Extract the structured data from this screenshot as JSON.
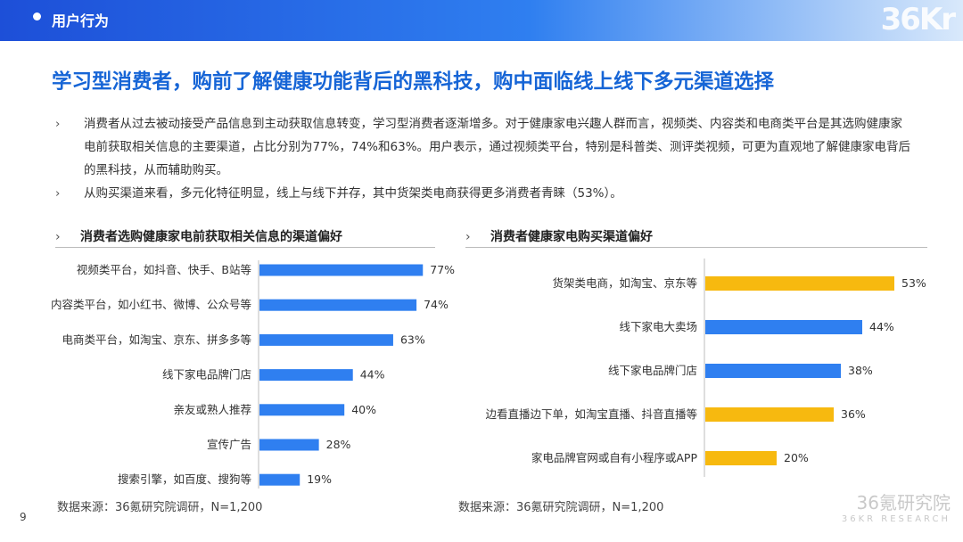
{
  "header": {
    "section": "用户行为",
    "logo": "36Kr"
  },
  "title": "学习型消费者，购前了解健康功能背后的黑科技，购中面临线上线下多元渠道选择",
  "bullets": [
    "消费者从过去被动接受产品信息到主动获取信息转变，学习型消费者逐渐增多。对于健康家电兴趣人群而言，视频类、内容类和电商类平台是其选购健康家电前获取相关信息的主要渠道，占比分别为77%，74%和63%。用户表示，通过视频类平台，特别是科普类、测评类视频，可更为直观地了解健康家电背后的黑科技，从而辅助购买。",
    "从购买渠道来看，多元化特征明显，线上与线下并存，其中货架类电商获得更多消费者青睐（53%）。"
  ],
  "colors": {
    "blue": "#2f7ff0",
    "gold": "#f7b90f",
    "title": "#1665d6"
  },
  "chart_data": [
    {
      "type": "bar",
      "orientation": "horizontal",
      "title": "消费者选购健康家电前获取相关信息的渠道偏好",
      "categories": [
        "视频类平台，如抖音、快手、B站等",
        "内容类平台，如小红书、微博、公众号等",
        "电商类平台，如淘宝、京东、拼多多等",
        "线下家电品牌门店",
        "亲友或熟人推荐",
        "宣传广告",
        "搜索引擎，如百度、搜狗等"
      ],
      "values": [
        77,
        74,
        63,
        44,
        40,
        28,
        19
      ],
      "labels": [
        "77%",
        "74%",
        "63%",
        "44%",
        "40%",
        "28%",
        "19%"
      ],
      "bar_colors": [
        "#2f7ff0",
        "#2f7ff0",
        "#2f7ff0",
        "#2f7ff0",
        "#2f7ff0",
        "#2f7ff0",
        "#2f7ff0"
      ],
      "unit": "%",
      "source": "数据来源：36氪研究院调研，N=1,200"
    },
    {
      "type": "bar",
      "orientation": "horizontal",
      "title": "消费者健康家电购买渠道偏好",
      "categories": [
        "货架类电商，如淘宝、京东等",
        "线下家电大卖场",
        "线下家电品牌门店",
        "边看直播边下单，如淘宝直播、抖音直播等",
        "家电品牌官网或自有小程序或APP"
      ],
      "values": [
        53,
        44,
        38,
        36,
        20
      ],
      "labels": [
        "53%",
        "44%",
        "38%",
        "36%",
        "20%"
      ],
      "bar_colors": [
        "#f7b90f",
        "#2f7ff0",
        "#2f7ff0",
        "#f7b90f",
        "#f7b90f"
      ],
      "unit": "%",
      "source": "数据来源：36氪研究院调研，N=1,200"
    }
  ],
  "page_number": "9",
  "watermark": {
    "line1": "36氪研究院",
    "line2": "36KR RESEARCH"
  }
}
